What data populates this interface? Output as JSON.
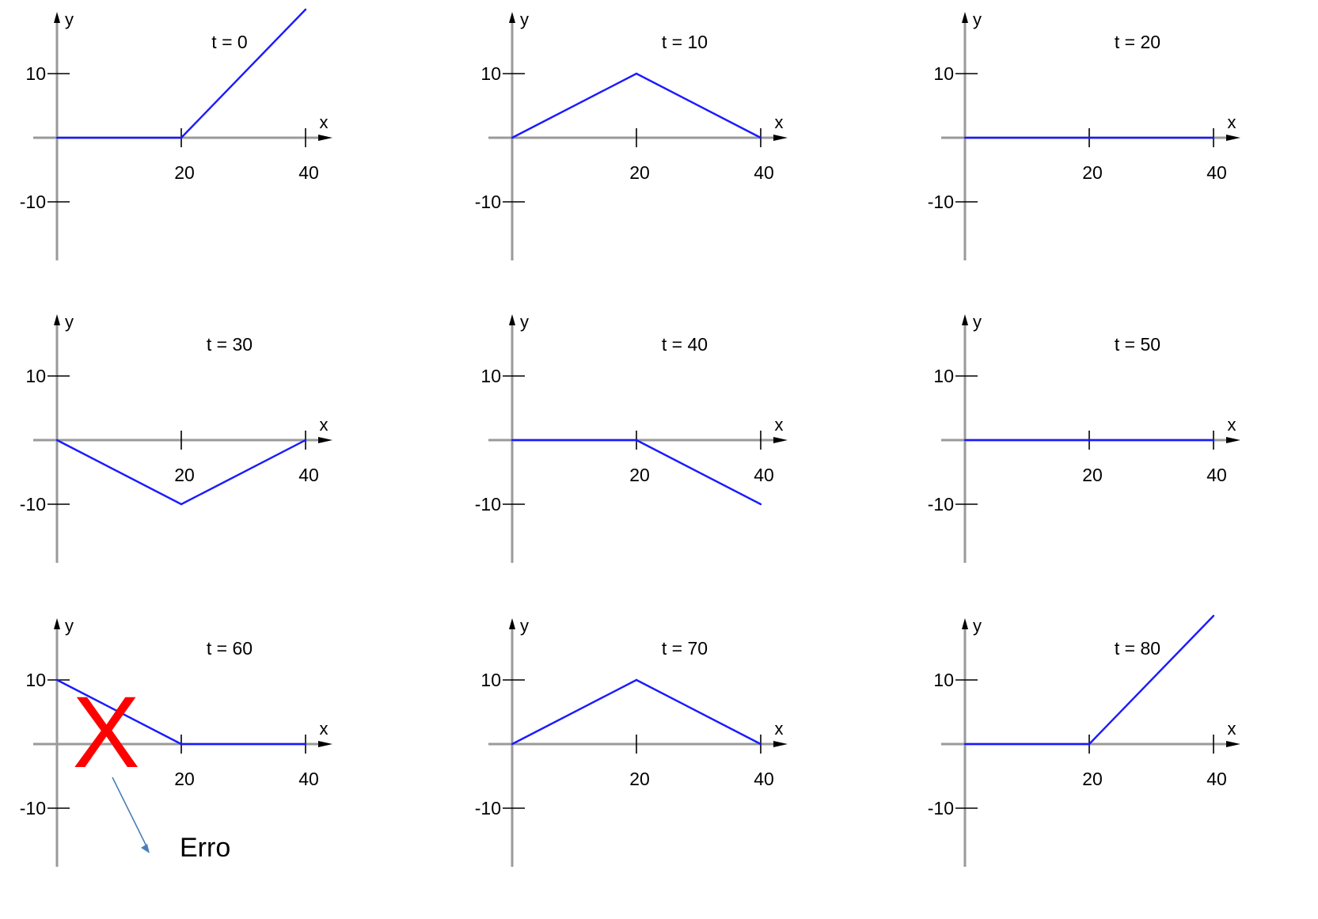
{
  "chart_data": [
    {
      "type": "line",
      "title": "t = 0",
      "xlabel": "x",
      "ylabel": "y",
      "xticks": [
        20,
        40
      ],
      "yticks": [
        10,
        -10
      ],
      "xlim": [
        0,
        40
      ],
      "ylim": [
        -20,
        20
      ],
      "series": [
        {
          "x": [
            0,
            20,
            40
          ],
          "y": [
            0,
            0,
            20
          ]
        }
      ]
    },
    {
      "type": "line",
      "title": "t = 10",
      "xlabel": "x",
      "ylabel": "y",
      "xticks": [
        20,
        40
      ],
      "yticks": [
        10,
        -10
      ],
      "xlim": [
        0,
        40
      ],
      "ylim": [
        -20,
        20
      ],
      "series": [
        {
          "x": [
            0,
            20,
            40
          ],
          "y": [
            0,
            10,
            0
          ]
        }
      ]
    },
    {
      "type": "line",
      "title": "t = 20",
      "xlabel": "x",
      "ylabel": "y",
      "xticks": [
        20,
        40
      ],
      "yticks": [
        10,
        -10
      ],
      "xlim": [
        0,
        40
      ],
      "ylim": [
        -20,
        20
      ],
      "series": [
        {
          "x": [
            0,
            20,
            40
          ],
          "y": [
            0,
            0,
            0
          ]
        }
      ]
    },
    {
      "type": "line",
      "title": "t = 30",
      "xlabel": "x",
      "ylabel": "y",
      "xticks": [
        20,
        40
      ],
      "yticks": [
        10,
        -10
      ],
      "xlim": [
        0,
        40
      ],
      "ylim": [
        -20,
        20
      ],
      "series": [
        {
          "x": [
            0,
            20,
            40
          ],
          "y": [
            0,
            -10,
            0
          ]
        }
      ]
    },
    {
      "type": "line",
      "title": "t = 40",
      "xlabel": "x",
      "ylabel": "y",
      "xticks": [
        20,
        40
      ],
      "yticks": [
        10,
        -10
      ],
      "xlim": [
        0,
        40
      ],
      "ylim": [
        -20,
        20
      ],
      "series": [
        {
          "x": [
            0,
            20,
            40
          ],
          "y": [
            0,
            0,
            -10
          ]
        }
      ]
    },
    {
      "type": "line",
      "title": "t = 50",
      "xlabel": "x",
      "ylabel": "y",
      "xticks": [
        20,
        40
      ],
      "yticks": [
        10,
        -10
      ],
      "xlim": [
        0,
        40
      ],
      "ylim": [
        -20,
        20
      ],
      "series": [
        {
          "x": [
            0,
            20,
            40
          ],
          "y": [
            0,
            0,
            0
          ]
        }
      ]
    },
    {
      "type": "line",
      "title": "t = 60",
      "xlabel": "x",
      "ylabel": "y",
      "xticks": [
        20,
        40
      ],
      "yticks": [
        10,
        -10
      ],
      "xlim": [
        0,
        40
      ],
      "ylim": [
        -20,
        20
      ],
      "series": [
        {
          "x": [
            0,
            20,
            40
          ],
          "y": [
            10,
            0,
            0
          ]
        }
      ],
      "annotations": [
        {
          "mark": "X",
          "text": "Erro",
          "color": "#ff0000"
        }
      ]
    },
    {
      "type": "line",
      "title": "t = 70",
      "xlabel": "x",
      "ylabel": "y",
      "xticks": [
        20,
        40
      ],
      "yticks": [
        10,
        -10
      ],
      "xlim": [
        0,
        40
      ],
      "ylim": [
        -20,
        20
      ],
      "series": [
        {
          "x": [
            0,
            20,
            40
          ],
          "y": [
            0,
            10,
            0
          ]
        }
      ]
    },
    {
      "type": "line",
      "title": "t = 80",
      "xlabel": "x",
      "ylabel": "y",
      "xticks": [
        20,
        40
      ],
      "yticks": [
        10,
        -10
      ],
      "xlim": [
        0,
        40
      ],
      "ylim": [
        -20,
        20
      ],
      "series": [
        {
          "x": [
            0,
            20,
            40
          ],
          "y": [
            0,
            0,
            20
          ]
        }
      ]
    }
  ],
  "colors": {
    "trace": "#1a1aff",
    "axis": "#9a9a9a",
    "error_mark": "#ff0000",
    "error_arrow": "#4a7ebb"
  }
}
